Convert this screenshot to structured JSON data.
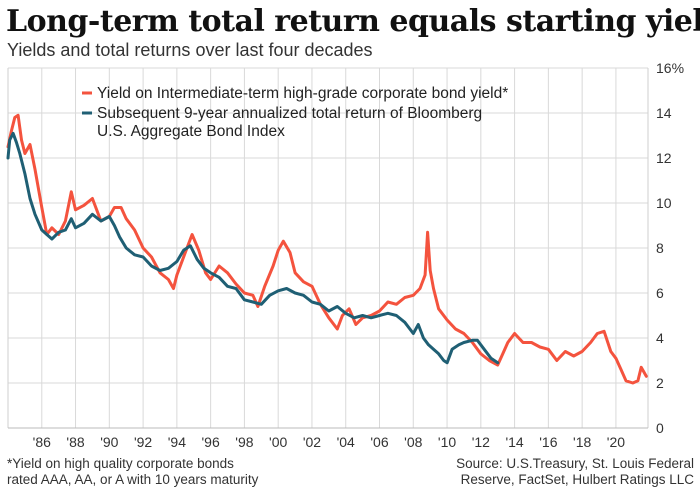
{
  "title": "Long-term total return equals starting yield",
  "subtitle": "Yields and total returns over last four decades",
  "footnote": [
    "*Yield on high quality corporate bonds",
    "rated AAA, AA, or A with 10 years maturity"
  ],
  "source": [
    "Source: U.S.Treasury, St. Louis Federal",
    "Reserve, FactSet, Hulbert Ratings LLC"
  ],
  "colors": {
    "yield": "#f4533e",
    "return": "#1f5f74",
    "grid": "#d9d9d9"
  },
  "chart_data": {
    "type": "line",
    "ylim": [
      0,
      16
    ],
    "xlim": [
      1984.0,
      2021.9
    ],
    "y_ticks": [
      0,
      2,
      4,
      6,
      8,
      10,
      12,
      14,
      16
    ],
    "y_tick_labels": [
      "0",
      "2",
      "4",
      "6",
      "8",
      "10",
      "12",
      "14",
      "16%"
    ],
    "x_ticks": [
      1986,
      1988,
      1990,
      1992,
      1994,
      1996,
      1998,
      2000,
      2002,
      2004,
      2006,
      2008,
      2010,
      2012,
      2014,
      2016,
      2018,
      2020
    ],
    "x_tick_labels": [
      "'86",
      "'88",
      "'90",
      "'92",
      "'94",
      "'96",
      "'98",
      "'00",
      "'02",
      "'04",
      "'06",
      "'08",
      "'10",
      "'12",
      "'14",
      "'16",
      "'18",
      "'20"
    ],
    "grid": true,
    "legend_position": "top-left",
    "series": [
      {
        "name": "Yield on Intermediate-term high-grade corporate bond yield*",
        "legend_lines": [
          "Yield on Intermediate-term high-grade corporate bond yield*"
        ],
        "color": "#f4533e",
        "x": [
          1984.0,
          1984.2,
          1984.4,
          1984.6,
          1984.8,
          1985.0,
          1985.3,
          1985.6,
          1986.0,
          1986.3,
          1986.6,
          1987.0,
          1987.4,
          1987.75,
          1988.0,
          1988.5,
          1989.0,
          1989.5,
          1990.0,
          1990.3,
          1990.7,
          1991.0,
          1991.5,
          1992.0,
          1992.5,
          1993.0,
          1993.5,
          1993.8,
          1994.0,
          1994.5,
          1994.9,
          1995.3,
          1995.7,
          1996.0,
          1996.5,
          1997.0,
          1997.5,
          1998.0,
          1998.5,
          1998.8,
          1999.2,
          1999.7,
          2000.0,
          2000.3,
          2000.7,
          2001.0,
          2001.5,
          2002.0,
          2002.5,
          2003.0,
          2003.5,
          2003.8,
          2004.2,
          2004.6,
          2005.0,
          2005.5,
          2006.0,
          2006.5,
          2007.0,
          2007.5,
          2008.0,
          2008.4,
          2008.7,
          2008.85,
          2009.0,
          2009.2,
          2009.5,
          2010.0,
          2010.5,
          2011.0,
          2011.5,
          2012.0,
          2012.5,
          2013.0,
          2013.3,
          2013.6,
          2014.0,
          2014.5,
          2015.0,
          2015.5,
          2016.0,
          2016.5,
          2017.0,
          2017.5,
          2018.0,
          2018.5,
          2018.9,
          2019.3,
          2019.7,
          2020.0,
          2020.3,
          2020.6,
          2021.0,
          2021.3,
          2021.5,
          2021.8
        ],
        "values": [
          12.5,
          13.2,
          13.8,
          13.9,
          12.8,
          12.2,
          12.6,
          11.5,
          9.8,
          8.6,
          8.9,
          8.6,
          9.2,
          10.5,
          9.7,
          9.9,
          10.2,
          9.2,
          9.4,
          9.8,
          9.8,
          9.3,
          8.8,
          8.0,
          7.6,
          6.9,
          6.6,
          6.2,
          6.8,
          7.8,
          8.6,
          7.9,
          6.9,
          6.6,
          7.2,
          6.9,
          6.4,
          6.0,
          5.9,
          5.4,
          6.3,
          7.2,
          7.9,
          8.3,
          7.8,
          6.9,
          6.5,
          6.3,
          5.5,
          4.9,
          4.4,
          5.0,
          5.3,
          4.6,
          4.9,
          5.0,
          5.2,
          5.6,
          5.5,
          5.8,
          5.9,
          6.2,
          6.8,
          8.7,
          7.0,
          6.2,
          5.3,
          4.8,
          4.4,
          4.2,
          3.8,
          3.3,
          3.0,
          2.8,
          3.3,
          3.8,
          4.2,
          3.8,
          3.8,
          3.6,
          3.5,
          3.0,
          3.4,
          3.2,
          3.4,
          3.8,
          4.2,
          4.3,
          3.4,
          3.1,
          2.6,
          2.1,
          2.0,
          2.1,
          2.7,
          2.3
        ]
      },
      {
        "name": "Subsequent 9-year annualized total return of Bloomberg U.S. Aggregate Bond Index",
        "legend_lines": [
          "Subsequent 9-year annualized total return of Bloomberg",
          "U.S. Aggregate Bond Index"
        ],
        "color": "#1f5f74",
        "x": [
          1984.0,
          1984.1,
          1984.3,
          1984.5,
          1984.7,
          1985.0,
          1985.3,
          1985.6,
          1986.0,
          1986.3,
          1986.6,
          1987.0,
          1987.4,
          1987.75,
          1988.0,
          1988.5,
          1989.0,
          1989.5,
          1990.0,
          1990.3,
          1990.6,
          1991.0,
          1991.5,
          1992.0,
          1992.5,
          1993.0,
          1993.5,
          1994.0,
          1994.4,
          1994.8,
          1995.2,
          1995.6,
          1996.0,
          1996.5,
          1997.0,
          1997.5,
          1998.0,
          1998.5,
          1999.0,
          1999.5,
          2000.0,
          2000.5,
          2001.0,
          2001.5,
          2002.0,
          2002.5,
          2003.0,
          2003.5,
          2004.0,
          2004.5,
          2005.0,
          2005.5,
          2006.0,
          2006.5,
          2007.0,
          2007.5,
          2008.0,
          2008.3,
          2008.6,
          2008.9,
          2009.2,
          2009.5,
          2009.8,
          2010.0,
          2010.3,
          2010.7,
          2011.0,
          2011.5,
          2011.8,
          2012.2,
          2012.6,
          2013.0
        ],
        "values": [
          12.0,
          12.8,
          13.1,
          12.7,
          12.2,
          11.3,
          10.2,
          9.5,
          8.8,
          8.6,
          8.4,
          8.7,
          8.8,
          9.3,
          8.9,
          9.1,
          9.5,
          9.2,
          9.4,
          9.0,
          8.5,
          8.0,
          7.7,
          7.6,
          7.2,
          7.0,
          7.1,
          7.4,
          7.9,
          8.1,
          7.5,
          7.1,
          6.9,
          6.7,
          6.3,
          6.2,
          5.7,
          5.6,
          5.5,
          5.9,
          6.1,
          6.2,
          6.0,
          5.9,
          5.6,
          5.5,
          5.2,
          5.4,
          5.1,
          4.9,
          5.0,
          4.9,
          5.0,
          5.1,
          5.0,
          4.7,
          4.2,
          4.6,
          4.0,
          3.7,
          3.5,
          3.3,
          3.0,
          2.9,
          3.5,
          3.7,
          3.8,
          3.9,
          3.9,
          3.5,
          3.1,
          2.9
        ]
      }
    ]
  }
}
